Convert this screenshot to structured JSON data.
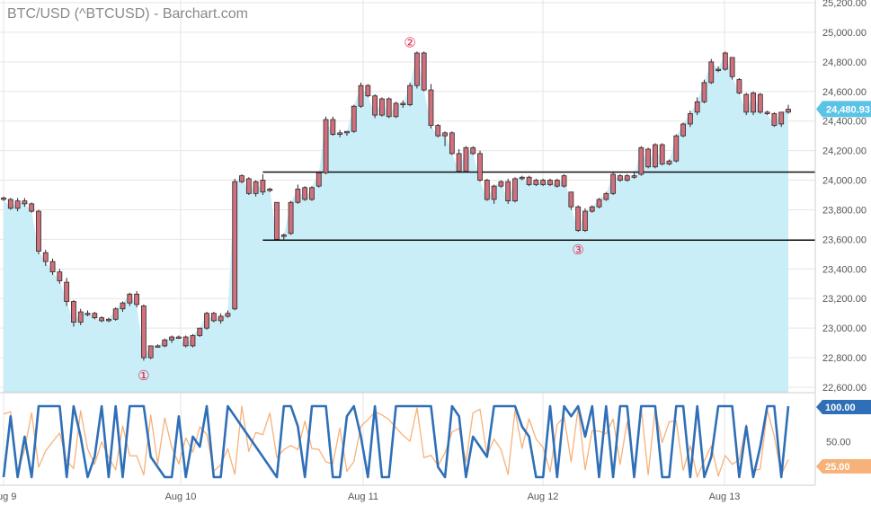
{
  "title": "BTC/USD (^BTCUSD) - Barchart.com",
  "colors": {
    "area_fill": "#c9eef7",
    "area_line": "#a8dfee",
    "candle": "#d1707c",
    "candle_outline": "#2a2a2a",
    "osc_blue": "#2f6fb8",
    "osc_orange": "#f6b27a",
    "grid": "#e6e6e6",
    "marker": "#e0244a",
    "last_price_tag": "#5bc3e6"
  },
  "chart_data": [
    {
      "type": "candlestick",
      "x_labels": [
        "Aug 9",
        "Aug 10",
        "Aug 11",
        "Aug 12",
        "Aug 13"
      ],
      "y_ticks": [
        "25,200.00",
        "25,000.00",
        "24,800.00",
        "24,600.00",
        "24,400.00",
        "24,200.00",
        "24,000.00",
        "23,800.00",
        "23,600.00",
        "23,400.00",
        "23,200.00",
        "23,000.00",
        "22,800.00",
        "22,600.00"
      ],
      "ylim": [
        22560,
        25220
      ],
      "last_price_label": "24,480.93",
      "last_price": 24480.93,
      "levels": [
        {
          "value": 24055,
          "from_index": 37
        },
        {
          "value": 23595,
          "from_index": 37
        }
      ],
      "markers": [
        {
          "symbol": "①",
          "index": 20,
          "value": 22680
        },
        {
          "symbol": "②",
          "index": 58,
          "value": 24930
        },
        {
          "symbol": "③",
          "index": 82,
          "value": 23530
        }
      ],
      "candles": [
        [
          23880,
          23890,
          23860,
          23870
        ],
        [
          23870,
          23880,
          23800,
          23810
        ],
        [
          23810,
          23880,
          23790,
          23860
        ],
        [
          23860,
          23880,
          23820,
          23840
        ],
        [
          23840,
          23850,
          23780,
          23790
        ],
        [
          23790,
          23800,
          23500,
          23520
        ],
        [
          23510,
          23530,
          23420,
          23450
        ],
        [
          23450,
          23470,
          23360,
          23380
        ],
        [
          23380,
          23400,
          23300,
          23320
        ],
        [
          23310,
          23340,
          23150,
          23180
        ],
        [
          23180,
          23190,
          23010,
          23040
        ],
        [
          23040,
          23130,
          23020,
          23110
        ],
        [
          23100,
          23120,
          23080,
          23100
        ],
        [
          23100,
          23110,
          23060,
          23070
        ],
        [
          23070,
          23080,
          23040,
          23050
        ],
        [
          23050,
          23070,
          23040,
          23060
        ],
        [
          23060,
          23140,
          23050,
          23130
        ],
        [
          23130,
          23180,
          23110,
          23170
        ],
        [
          23170,
          23240,
          23150,
          23230
        ],
        [
          23230,
          23250,
          23140,
          23160
        ],
        [
          23150,
          23160,
          22780,
          22800
        ],
        [
          22800,
          22880,
          22790,
          22880
        ],
        [
          22880,
          22890,
          22870,
          22880
        ],
        [
          22880,
          22930,
          22870,
          22920
        ],
        [
          22920,
          22950,
          22900,
          22940
        ],
        [
          22940,
          22950,
          22930,
          22940
        ],
        [
          22940,
          22950,
          22870,
          22880
        ],
        [
          22880,
          22960,
          22870,
          22950
        ],
        [
          22950,
          23000,
          22940,
          23000
        ],
        [
          23000,
          23110,
          22990,
          23100
        ],
        [
          23100,
          23110,
          23040,
          23050
        ],
        [
          23050,
          23100,
          23030,
          23080
        ],
        [
          23080,
          23120,
          23070,
          23100
        ],
        [
          23130,
          24010,
          23120,
          23990
        ],
        [
          23990,
          24040,
          23980,
          24030
        ],
        [
          24010,
          24020,
          23900,
          23910
        ],
        [
          23910,
          24000,
          23890,
          23990
        ],
        [
          24000,
          24040,
          23900,
          23920
        ],
        [
          23930,
          23950,
          23920,
          23940
        ],
        [
          23850,
          23850,
          23600,
          23600
        ],
        [
          23620,
          23640,
          23600,
          23630
        ],
        [
          23640,
          23860,
          23630,
          23850
        ],
        [
          23850,
          23970,
          23840,
          23940
        ],
        [
          23950,
          23960,
          23860,
          23870
        ],
        [
          23870,
          23960,
          23860,
          23950
        ],
        [
          23960,
          24060,
          23950,
          24050
        ],
        [
          24050,
          24430,
          24040,
          24410
        ],
        [
          24410,
          24430,
          24300,
          24310
        ],
        [
          24310,
          24340,
          24290,
          24320
        ],
        [
          24320,
          24330,
          24300,
          24330
        ],
        [
          24330,
          24510,
          24320,
          24500
        ],
        [
          24500,
          24660,
          24490,
          24640
        ],
        [
          24640,
          24650,
          24560,
          24570
        ],
        [
          24570,
          24580,
          24420,
          24440
        ],
        [
          24440,
          24560,
          24430,
          24550
        ],
        [
          24550,
          24560,
          24420,
          24430
        ],
        [
          24430,
          24530,
          24420,
          24520
        ],
        [
          24520,
          24540,
          24490,
          24510
        ],
        [
          24510,
          24660,
          24500,
          24640
        ],
        [
          24640,
          24870,
          24620,
          24860
        ],
        [
          24860,
          24870,
          24600,
          24610
        ],
        [
          24610,
          24650,
          24350,
          24370
        ],
        [
          24370,
          24380,
          24290,
          24300
        ],
        [
          24300,
          24330,
          24230,
          24320
        ],
        [
          24320,
          24330,
          24170,
          24180
        ],
        [
          24180,
          24210,
          24050,
          24060
        ],
        [
          24060,
          24230,
          24050,
          24220
        ],
        [
          24220,
          24230,
          24170,
          24180
        ],
        [
          24180,
          24200,
          23990,
          24000
        ],
        [
          24000,
          24010,
          23860,
          23870
        ],
        [
          23870,
          23970,
          23840,
          23960
        ],
        [
          23960,
          24000,
          23950,
          23990
        ],
        [
          23990,
          24010,
          23840,
          23860
        ],
        [
          23860,
          24020,
          23850,
          24010
        ],
        [
          24010,
          24030,
          24000,
          24020
        ],
        [
          24020,
          24030,
          23960,
          23970
        ],
        [
          23970,
          24010,
          23960,
          24000
        ],
        [
          24000,
          24010,
          23960,
          23970
        ],
        [
          23970,
          24010,
          23960,
          24000
        ],
        [
          24000,
          24010,
          23950,
          23960
        ],
        [
          23960,
          24040,
          23950,
          24030
        ],
        [
          23920,
          23920,
          23800,
          23820
        ],
        [
          23820,
          23830,
          23650,
          23660
        ],
        [
          23660,
          23810,
          23650,
          23790
        ],
        [
          23790,
          23830,
          23780,
          23820
        ],
        [
          23820,
          23880,
          23810,
          23870
        ],
        [
          23870,
          23920,
          23860,
          23910
        ],
        [
          23910,
          24050,
          23900,
          24040
        ],
        [
          24030,
          24040,
          23990,
          24000
        ],
        [
          24000,
          24040,
          23990,
          24030
        ],
        [
          24030,
          24060,
          24010,
          24020
        ],
        [
          24040,
          24230,
          24030,
          24220
        ],
        [
          24210,
          24220,
          24080,
          24090
        ],
        [
          24090,
          24250,
          24080,
          24240
        ],
        [
          24240,
          24250,
          24100,
          24110
        ],
        [
          24110,
          24140,
          24100,
          24130
        ],
        [
          24130,
          24310,
          24120,
          24300
        ],
        [
          24300,
          24390,
          24290,
          24380
        ],
        [
          24380,
          24470,
          24360,
          24450
        ],
        [
          24460,
          24560,
          24440,
          24530
        ],
        [
          24530,
          24680,
          24520,
          24660
        ],
        [
          24660,
          24820,
          24650,
          24800
        ],
        [
          24750,
          24770,
          24730,
          24750
        ],
        [
          24750,
          24870,
          24740,
          24860
        ],
        [
          24830,
          24830,
          24680,
          24700
        ],
        [
          24680,
          24690,
          24580,
          24590
        ],
        [
          24580,
          24590,
          24440,
          24460
        ],
        [
          24460,
          24600,
          24440,
          24590
        ],
        [
          24580,
          24590,
          24450,
          24460
        ],
        [
          24460,
          24470,
          24440,
          24450
        ],
        [
          24450,
          24460,
          24360,
          24370
        ],
        [
          24380,
          24460,
          24360,
          24460
        ],
        [
          24460,
          24510,
          24450,
          24480
        ]
      ]
    },
    {
      "type": "line",
      "name_hidden": true,
      "y_tick": "50.00",
      "ylim": [
        0,
        100
      ],
      "series": [
        {
          "label": "100.00",
          "color": "#2f6fb8"
        },
        {
          "label": "25.00",
          "color": "#f6b27a"
        }
      ]
    }
  ]
}
